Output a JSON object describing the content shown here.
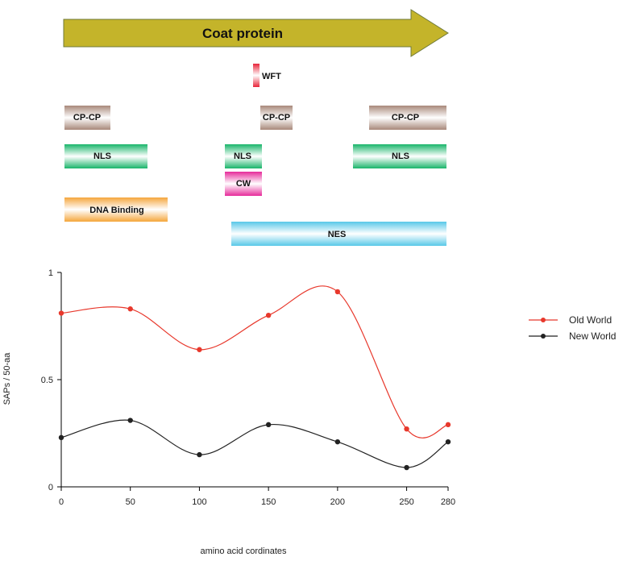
{
  "coat_protein": {
    "label": "Coat protein"
  },
  "domains": {
    "wft": "WFT",
    "cpcp_1": "CP-CP",
    "cpcp_2": "CP-CP",
    "cpcp_3": "CP-CP",
    "nls_1": "NLS",
    "nls_2": "NLS",
    "nls_3": "NLS",
    "cw": "CW",
    "dna_binding": "DNA Binding",
    "nes": "NES"
  },
  "colors": {
    "coat": "#c4b42a",
    "cpcp": "#a8887a",
    "nls": "#19b56a",
    "cw": "#e62b9a",
    "dna": "#f5a63c",
    "nes": "#58c8e8",
    "wft": "#e8253a",
    "old_world": "#e8382c",
    "new_world": "#222222"
  },
  "chart_data": {
    "type": "line",
    "xlabel": "amino acid cordinates",
    "ylabel": "SAPs / 50-aa",
    "x_ticks": [
      "0",
      "50",
      "100",
      "150",
      "200",
      "250",
      "280"
    ],
    "y_ticks": [
      "0",
      "0.5",
      "1"
    ],
    "xlim": [
      0,
      280
    ],
    "ylim": [
      0,
      1
    ],
    "series": [
      {
        "name": "Old World",
        "x": [
          0,
          50,
          100,
          150,
          200,
          250,
          280
        ],
        "y": [
          0.81,
          0.83,
          0.64,
          0.8,
          0.91,
          0.27,
          0.29
        ]
      },
      {
        "name": "New World",
        "x": [
          0,
          50,
          100,
          150,
          200,
          250,
          280
        ],
        "y": [
          0.23,
          0.31,
          0.15,
          0.29,
          0.21,
          0.09,
          0.21
        ]
      }
    ],
    "legend_position": "right"
  }
}
